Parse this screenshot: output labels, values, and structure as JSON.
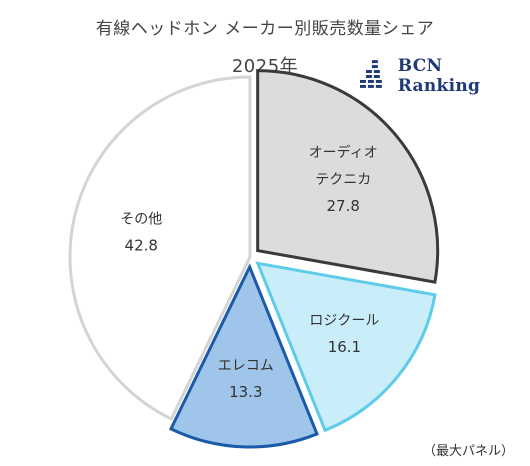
{
  "chart_data": {
    "type": "pie",
    "title": "有線ヘッドホン メーカー別販売数量シェア",
    "subtitle": "2025年",
    "slices": [
      {
        "label": "オーディオテクニカ",
        "label_lines": [
          "オーディオ",
          "テクニカ"
        ],
        "value": 27.8,
        "value_text": "27.8",
        "fill": "#dcdcdc",
        "stroke": "#3a3a3a",
        "exploded": true
      },
      {
        "label": "ロジクール",
        "label_lines": [
          "ロジクール"
        ],
        "value": 16.1,
        "value_text": "16.1",
        "fill": "#c9eefa",
        "stroke": "#5ecbe8",
        "exploded": true
      },
      {
        "label": "エレコム",
        "label_lines": [
          "エレコム"
        ],
        "value": 13.3,
        "value_text": "13.3",
        "fill": "#9fc5ea",
        "stroke": "#1a5aa8",
        "exploded": true
      },
      {
        "label": "その他",
        "label_lines": [
          "その他"
        ],
        "value": 42.8,
        "value_text": "42.8",
        "fill": "#ffffff",
        "stroke": "#d4d4d4",
        "exploded": false
      }
    ]
  },
  "logo": {
    "text": "BCN Ranking",
    "color": "#1f3a78"
  },
  "note": "（最大パネル）"
}
